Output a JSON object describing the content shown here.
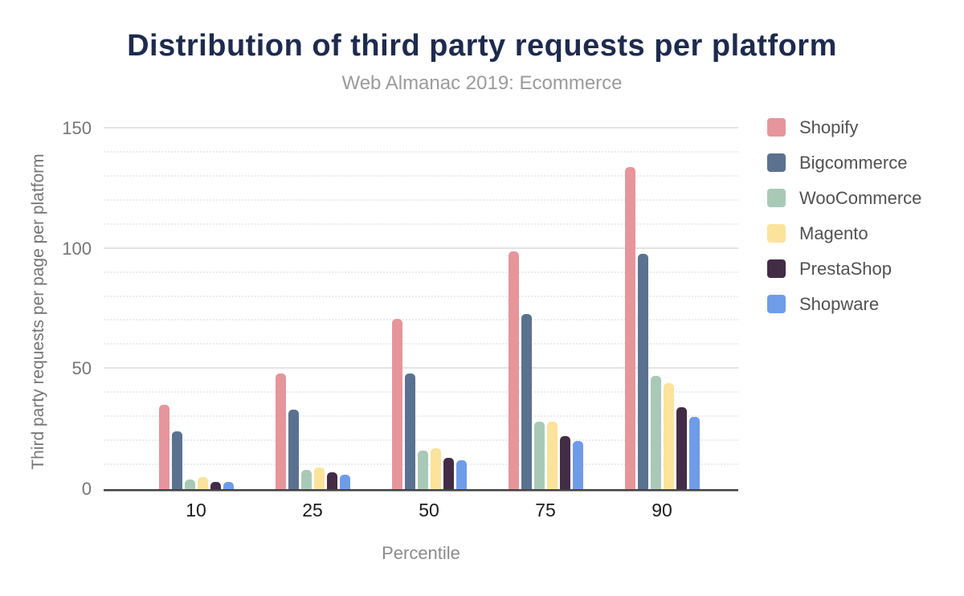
{
  "title": "Distribution of third party requests per platform",
  "subtitle": "Web Almanac 2019: Ecommerce",
  "chart_data": {
    "type": "bar",
    "title": "Distribution of third party requests per platform",
    "subtitle": "Web Almanac 2019: Ecommerce",
    "xlabel": "Percentile",
    "ylabel": "Third party requests per page per platform",
    "categories": [
      "10",
      "25",
      "50",
      "75",
      "90"
    ],
    "series": [
      {
        "name": "Shopify",
        "color": "#e6959b",
        "values": [
          35,
          48,
          71,
          99,
          134
        ]
      },
      {
        "name": "Bigcommerce",
        "color": "#5b7190",
        "values": [
          24,
          33,
          48,
          73,
          98
        ]
      },
      {
        "name": "WooCommerce",
        "color": "#a9c9b6",
        "values": [
          4,
          8,
          16,
          28,
          47
        ]
      },
      {
        "name": "Magento",
        "color": "#fbe39b",
        "values": [
          5,
          9,
          17,
          28,
          44
        ]
      },
      {
        "name": "PrestaShop",
        "color": "#432c46",
        "values": [
          3,
          7,
          13,
          22,
          34
        ]
      },
      {
        "name": "Shopware",
        "color": "#6f9ce8",
        "values": [
          3,
          6,
          12,
          20,
          30
        ]
      }
    ],
    "ylim": [
      0,
      150
    ],
    "yticks": [
      0,
      50,
      100,
      150
    ],
    "grid": {
      "minor_step": 10,
      "major_step": 50,
      "visible": true
    },
    "legend_position": "right"
  },
  "colors": {
    "title": "#1e2b4d",
    "subtitle": "#9b9b9b",
    "axis_line": "#424242",
    "tick_label": "#757575",
    "x_tick_label": "#1a1a1a",
    "grid_major": "#e4e4e4",
    "grid_minor": "#ececec",
    "background": "#ffffff"
  }
}
